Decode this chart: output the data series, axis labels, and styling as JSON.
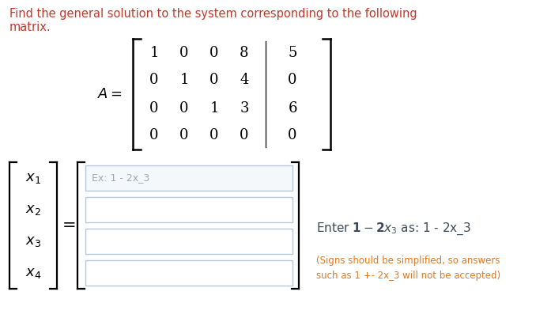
{
  "title_line1": "Find the general solution to the system corresponding to the following",
  "title_line2": "matrix.",
  "title_color": "#c0392b",
  "title_fontsize": 10.5,
  "matrix_label": "A =",
  "matrix_data": [
    [
      "1",
      "0",
      "0",
      "8",
      "5"
    ],
    [
      "0",
      "1",
      "0",
      "4",
      "0"
    ],
    [
      "0",
      "0",
      "1",
      "3",
      "6"
    ],
    [
      "0",
      "0",
      "0",
      "0",
      "0"
    ]
  ],
  "x_labels": [
    "x_1",
    "x_2",
    "x_3",
    "x_4"
  ],
  "placeholder_text": "Ex: 1 - 2x_3",
  "placeholder_color": "#a0a8b0",
  "hint_color_main": "#3d4a5c",
  "hint_color_sub": "#e07820",
  "box_border_color": "#b8c8d8",
  "box_fill_color": "#f4f8fb",
  "background_color": "#ffffff"
}
